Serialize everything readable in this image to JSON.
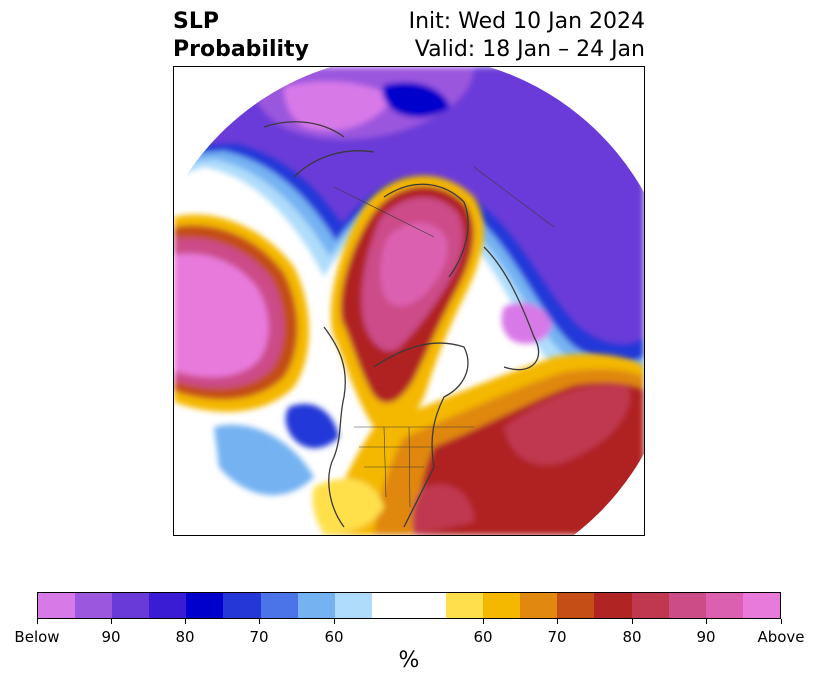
{
  "header": {
    "title_line1": "SLP",
    "title_line2": "Probability",
    "init": "Init: Wed 10 Jan 2024",
    "valid": "Valid: 18 Jan – 24 Jan"
  },
  "colorbar": {
    "units": "%",
    "colors": [
      "#d879e8",
      "#9b57de",
      "#6a3ad8",
      "#3a1cd4",
      "#0000cc",
      "#2438d8",
      "#4a74e8",
      "#74b2f2",
      "#aedcfa",
      "#ffffff",
      "#ffffff",
      "#ffe04c",
      "#f4b800",
      "#e08810",
      "#c44e16",
      "#b02424",
      "#c03850",
      "#cc4c88",
      "#dc60b0",
      "#e87adc"
    ],
    "tick_labels": [
      "Below",
      "90",
      "80",
      "70",
      "60",
      "60",
      "70",
      "80",
      "90",
      "Above"
    ]
  },
  "map": {
    "projection": "north-polar-stereographic",
    "region": "North America / North Atlantic / North Pacific"
  }
}
